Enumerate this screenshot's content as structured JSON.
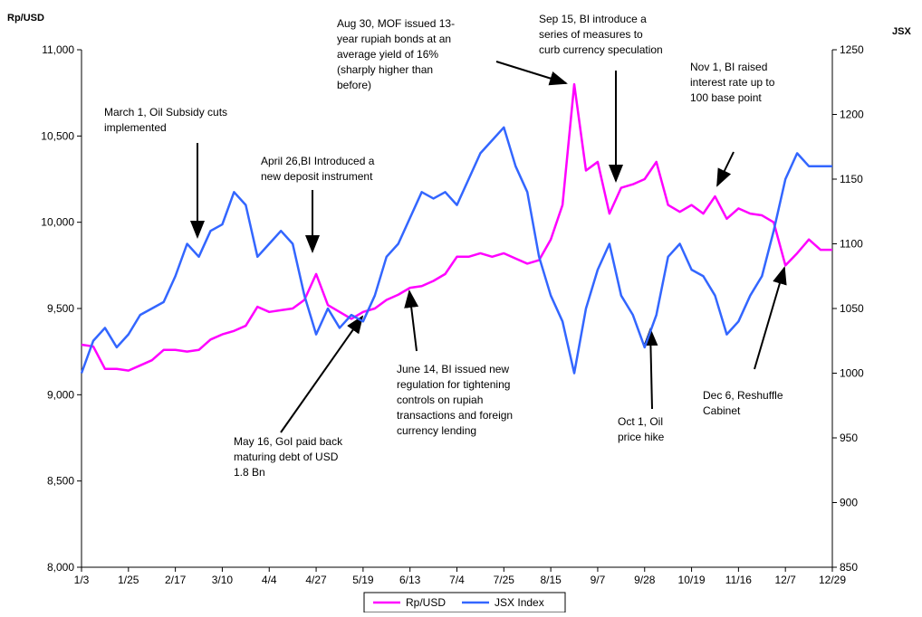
{
  "chart_data": {
    "type": "line",
    "y_axis_label": "Rp/USD",
    "y2_axis_label": "JSX",
    "categories": [
      "1/3",
      null,
      null,
      null,
      "1/25",
      null,
      null,
      null,
      "2/17",
      null,
      null,
      null,
      "3/10",
      null,
      null,
      null,
      "4/4",
      null,
      null,
      null,
      "4/27",
      null,
      null,
      null,
      "5/19",
      null,
      null,
      null,
      "6/13",
      null,
      null,
      null,
      "7/4",
      null,
      null,
      null,
      "7/25",
      null,
      null,
      null,
      "8/15",
      null,
      null,
      null,
      "9/7",
      null,
      null,
      null,
      "9/28",
      null,
      null,
      null,
      "10/19",
      null,
      null,
      null,
      "11/16",
      null,
      null,
      null,
      "12/7",
      null,
      null,
      null,
      "12/29"
    ],
    "series": [
      {
        "name": "Rp/USD",
        "color": "#ff00ff",
        "axis": "y",
        "values": [
          9290,
          9280,
          9150,
          9150,
          9140,
          9170,
          9200,
          9260,
          9260,
          9250,
          9260,
          9320,
          9350,
          9370,
          9400,
          9510,
          9480,
          9490,
          9500,
          9550,
          9700,
          9520,
          9480,
          9440,
          9480,
          9500,
          9550,
          9580,
          9620,
          9630,
          9660,
          9700,
          9800,
          9800,
          9820,
          9800,
          9820,
          9790,
          9760,
          9780,
          9900,
          10100,
          10800,
          10300,
          10350,
          10050,
          10200,
          10220,
          10250,
          10350,
          10100,
          10060,
          10100,
          10050,
          10150,
          10020,
          10080,
          10050,
          10040,
          10000,
          9750,
          9820,
          9900,
          9840,
          9840
        ]
      },
      {
        "name": "JSX Index",
        "color": "#3366ff",
        "axis": "y2",
        "values": [
          1000,
          1025,
          1035,
          1020,
          1030,
          1045,
          1050,
          1055,
          1075,
          1100,
          1090,
          1110,
          1115,
          1140,
          1130,
          1090,
          1100,
          1110,
          1100,
          1060,
          1030,
          1050,
          1035,
          1045,
          1040,
          1060,
          1090,
          1100,
          1120,
          1140,
          1135,
          1140,
          1130,
          1150,
          1170,
          1180,
          1190,
          1160,
          1140,
          1090,
          1060,
          1040,
          1000,
          1050,
          1080,
          1100,
          1060,
          1045,
          1020,
          1045,
          1090,
          1100,
          1080,
          1075,
          1060,
          1030,
          1040,
          1060,
          1075,
          1110,
          1150,
          1170,
          1160,
          1160,
          1160
        ]
      }
    ],
    "ylim": [
      8000,
      11000
    ],
    "yticks": [
      {
        "value": 8000,
        "label": "8,000"
      },
      {
        "value": 8500,
        "label": "8,500"
      },
      {
        "value": 9000,
        "label": "9,000"
      },
      {
        "value": 9500,
        "label": "9,500"
      },
      {
        "value": 10000,
        "label": "10,000"
      },
      {
        "value": 10500,
        "label": "10,500"
      },
      {
        "value": 11000,
        "label": "11,000"
      }
    ],
    "y2lim": [
      850,
      1250
    ],
    "y2ticks": [
      850,
      900,
      950,
      1000,
      1050,
      1100,
      1150,
      1200,
      1250
    ],
    "grid": false,
    "legend": "bottom",
    "annotations": [
      {
        "lines": [
          "March 1, Oil Subsidy cuts",
          "implemented"
        ]
      },
      {
        "lines": [
          "April 26,BI Introduced a",
          "new deposit instrument"
        ]
      },
      {
        "lines": [
          "Aug 30, MOF issued 13-",
          "year rupiah bonds at an",
          "average yield of 16%",
          "(sharply higher than",
          "before)"
        ]
      },
      {
        "lines": [
          "Sep 15, BI introduce a",
          "series of measures to",
          "curb currency speculation"
        ]
      },
      {
        "lines": [
          "Nov 1, BI raised",
          "interest rate up to",
          "100 base point"
        ]
      },
      {
        "lines": [
          "June 14, BI issued new",
          "regulation for tightening",
          "controls on rupiah",
          "transactions and foreign",
          "currency lending"
        ]
      },
      {
        "lines": [
          "May 16, GoI paid back",
          "maturing debt of USD",
          "1.8 Bn"
        ]
      },
      {
        "lines": [
          "Oct 1, Oil",
          "price hike"
        ]
      },
      {
        "lines": [
          "Dec 6, Reshuffle",
          "Cabinet"
        ]
      }
    ]
  }
}
